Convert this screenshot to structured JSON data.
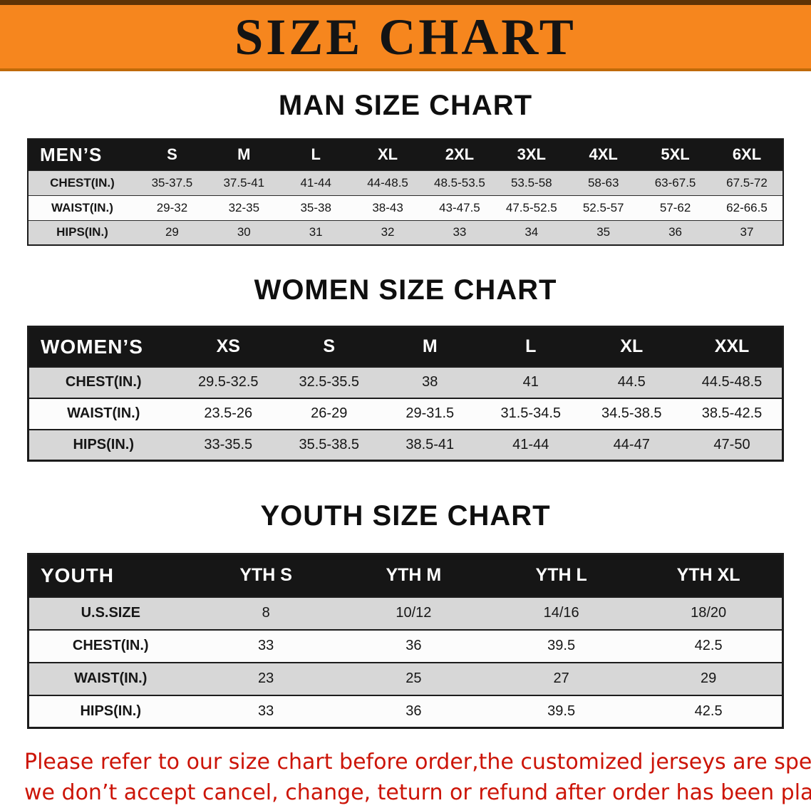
{
  "banner": {
    "title": "SIZE CHART"
  },
  "sections": [
    {
      "id": "men",
      "heading": "MAN SIZE CHART",
      "table": {
        "corner_label": "MEN’S",
        "columns": [
          "S",
          "M",
          "L",
          "XL",
          "2XL",
          "3XL",
          "4XL",
          "5XL",
          "6XL"
        ],
        "rows": [
          {
            "label": "CHEST(IN.)",
            "values": [
              "35-37.5",
              "37.5-41",
              "41-44",
              "44-48.5",
              "48.5-53.5",
              "53.5-58",
              "58-63",
              "63-67.5",
              "67.5-72"
            ]
          },
          {
            "label": "WAIST(IN.)",
            "values": [
              "29-32",
              "32-35",
              "35-38",
              "38-43",
              "43-47.5",
              "47.5-52.5",
              "52.5-57",
              "57-62",
              "62-66.5"
            ]
          },
          {
            "label": "HIPS(IN.)",
            "values": [
              "29",
              "30",
              "31",
              "32",
              "33",
              "34",
              "35",
              "36",
              "37"
            ]
          }
        ]
      }
    },
    {
      "id": "women",
      "heading": "WOMEN SIZE CHART",
      "table": {
        "corner_label": "WOMEN’S",
        "columns": [
          "XS",
          "S",
          "M",
          "L",
          "XL",
          "XXL"
        ],
        "rows": [
          {
            "label": "CHEST(IN.)",
            "values": [
              "29.5-32.5",
              "32.5-35.5",
              "38",
              "41",
              "44.5",
              "44.5-48.5"
            ]
          },
          {
            "label": "WAIST(IN.)",
            "values": [
              "23.5-26",
              "26-29",
              "29-31.5",
              "31.5-34.5",
              "34.5-38.5",
              "38.5-42.5"
            ]
          },
          {
            "label": "HIPS(IN.)",
            "values": [
              "33-35.5",
              "35.5-38.5",
              "38.5-41",
              "41-44",
              "44-47",
              "47-50"
            ]
          }
        ]
      }
    },
    {
      "id": "youth",
      "heading": "YOUTH SIZE CHART",
      "table": {
        "corner_label": "YOUTH",
        "columns": [
          "YTH S",
          "YTH M",
          "YTH L",
          "YTH XL"
        ],
        "rows": [
          {
            "label": "U.S.SIZE",
            "values": [
              "8",
              "10/12",
              "14/16",
              "18/20"
            ]
          },
          {
            "label": "CHEST(IN.)",
            "values": [
              "33",
              "36",
              "39.5",
              "42.5"
            ]
          },
          {
            "label": "WAIST(IN.)",
            "values": [
              "23",
              "25",
              "27",
              "29"
            ]
          },
          {
            "label": "HIPS(IN.)",
            "values": [
              "33",
              "36",
              "39.5",
              "42.5"
            ]
          }
        ]
      }
    }
  ],
  "footer": {
    "line1": "Please refer to our size chart before order,the customized jerseys are special products,",
    "line2": "we don’t accept cancel, change, teturn or refund after order has been placed!"
  },
  "colors": {
    "banner_orange": "#f6861e",
    "banner_edge_dark": "#5f3305",
    "banner_edge_light": "#c06a08",
    "header_black": "#161616",
    "row_gray": "#d7d7d7",
    "row_white": "#fcfcfc",
    "notice_red": "#cc1407",
    "text_black": "#141414"
  }
}
